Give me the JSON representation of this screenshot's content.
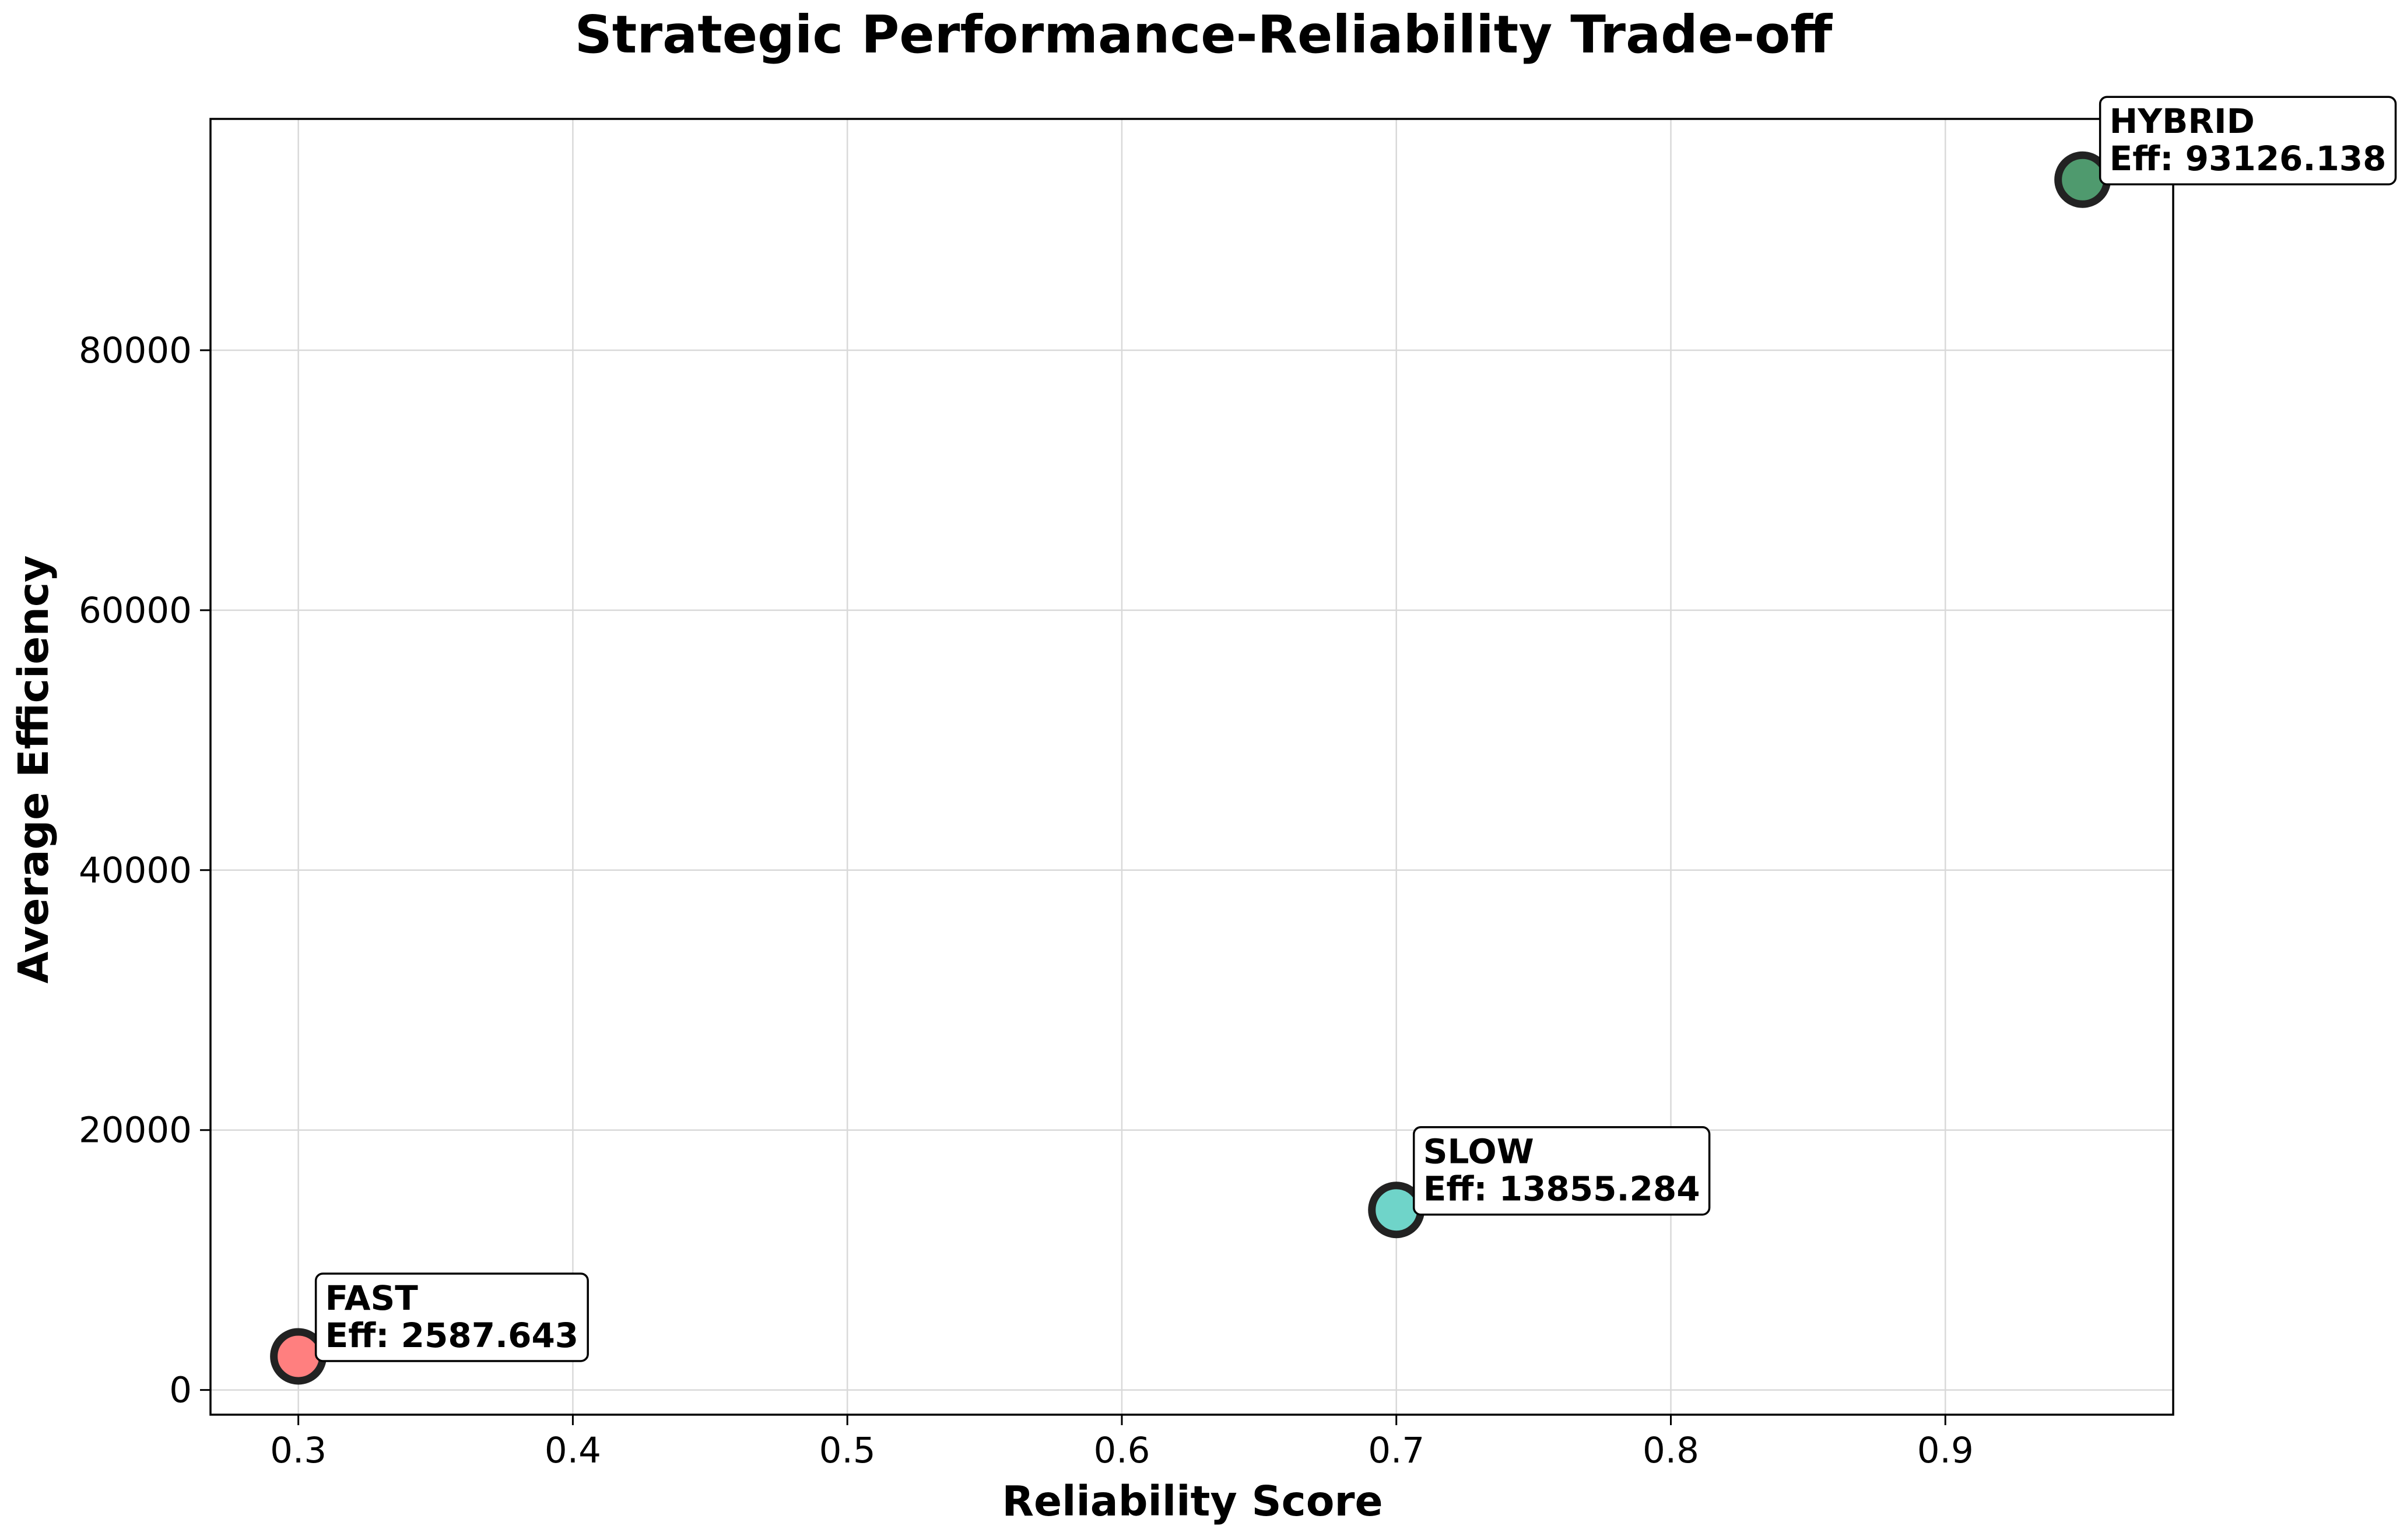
{
  "chart_data": {
    "type": "scatter",
    "title": "Strategic Performance-Reliability Trade-off",
    "xlabel": "Reliability Score",
    "ylabel": "Average Efficiency",
    "xlim": [
      0.268,
      0.983
    ],
    "ylim": [
      -1900,
      97800
    ],
    "xticks": [
      0.3,
      0.4,
      0.5,
      0.6,
      0.7,
      0.8,
      0.9
    ],
    "xtick_labels": [
      "0.3",
      "0.4",
      "0.5",
      "0.6",
      "0.7",
      "0.8",
      "0.9"
    ],
    "yticks": [
      0,
      20000,
      40000,
      60000,
      80000
    ],
    "ytick_labels": [
      "0",
      "20000",
      "40000",
      "60000",
      "80000"
    ],
    "grid": true,
    "points": [
      {
        "label": "FAST",
        "annotation": "Eff: 2587.643",
        "x": 0.3,
        "y": 2587.643,
        "color": "#ff7f7f"
      },
      {
        "label": "SLOW",
        "annotation": "Eff: 13855.284",
        "x": 0.7,
        "y": 13855.284,
        "color": "#6fd4c9"
      },
      {
        "label": "HYBRID",
        "annotation": "Eff: 93126.138",
        "x": 0.95,
        "y": 93126.138,
        "color": "#4f9a6e"
      }
    ]
  }
}
